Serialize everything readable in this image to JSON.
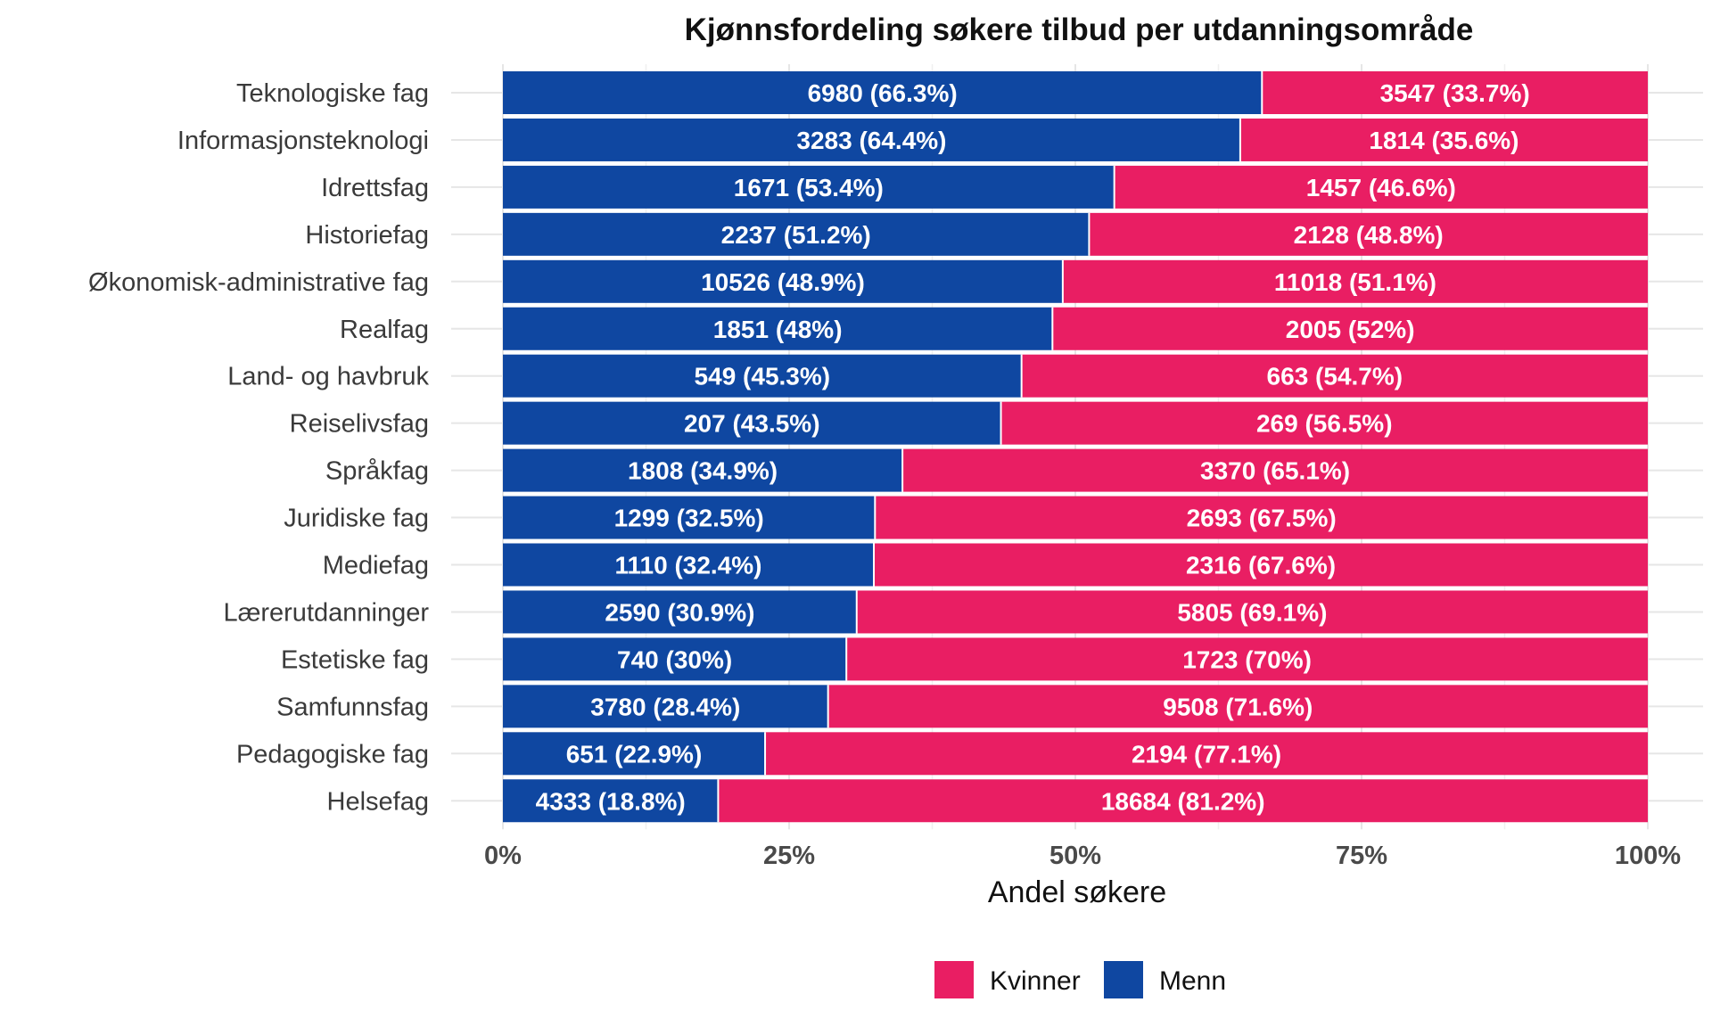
{
  "chart_data": {
    "type": "bar",
    "orientation": "horizontal",
    "stacked": true,
    "normalized": true,
    "title": "Kjønnsfordeling søkere tilbud per utdanningsområde",
    "xlabel": "Andel søkere",
    "ylabel": "",
    "xlim": [
      0,
      100
    ],
    "x_ticks": [
      "0%",
      "25%",
      "50%",
      "75%",
      "100%"
    ],
    "grid": true,
    "legend_position": "bottom",
    "categories": [
      "Teknologiske fag",
      "Informasjonsteknologi",
      "Idrettsfag",
      "Historiefag",
      "Økonomisk-administrative fag",
      "Realfag",
      "Land- og havbruk",
      "Reiselivsfag",
      "Språkfag",
      "Juridiske fag",
      "Mediefag",
      "Lærerutdanninger",
      "Estetiske fag",
      "Samfunnsfag",
      "Pedagogiske fag",
      "Helsefag"
    ],
    "series": [
      {
        "name": "Menn",
        "color": "#0f47a1",
        "counts": [
          6980,
          3283,
          1671,
          2237,
          10526,
          1851,
          549,
          207,
          1808,
          1299,
          1110,
          2590,
          740,
          3780,
          651,
          4333
        ],
        "values": [
          66.3,
          64.4,
          53.4,
          51.2,
          48.9,
          48,
          45.3,
          43.5,
          34.9,
          32.5,
          32.4,
          30.9,
          30,
          28.4,
          22.9,
          18.8
        ],
        "labels": [
          "6980 (66.3%)",
          "3283 (64.4%)",
          "1671 (53.4%)",
          "2237 (51.2%)",
          "10526 (48.9%)",
          "1851 (48%)",
          "549 (45.3%)",
          "207 (43.5%)",
          "1808 (34.9%)",
          "1299 (32.5%)",
          "1110 (32.4%)",
          "2590 (30.9%)",
          "740 (30%)",
          "3780 (28.4%)",
          "651 (22.9%)",
          "4333 (18.8%)"
        ]
      },
      {
        "name": "Kvinner",
        "color": "#e91e63",
        "counts": [
          3547,
          1814,
          1457,
          2128,
          11018,
          2005,
          663,
          269,
          3370,
          2693,
          2316,
          5805,
          1723,
          9508,
          2194,
          18684
        ],
        "values": [
          33.7,
          35.6,
          46.6,
          48.8,
          51.1,
          52,
          54.7,
          56.5,
          65.1,
          67.5,
          67.6,
          69.1,
          70,
          71.6,
          77.1,
          81.2
        ],
        "labels": [
          "3547 (33.7%)",
          "1814 (35.6%)",
          "1457 (46.6%)",
          "2128 (48.8%)",
          "11018 (51.1%)",
          "2005 (52%)",
          "663 (54.7%)",
          "269 (56.5%)",
          "3370 (65.1%)",
          "2693 (67.5%)",
          "2316 (67.6%)",
          "5805 (69.1%)",
          "1723 (70%)",
          "9508 (71.6%)",
          "2194 (77.1%)",
          "18684 (81.2%)"
        ]
      }
    ],
    "legend": [
      {
        "name": "Kvinner",
        "color": "#e91e63"
      },
      {
        "name": "Menn",
        "color": "#0f47a1"
      }
    ]
  }
}
